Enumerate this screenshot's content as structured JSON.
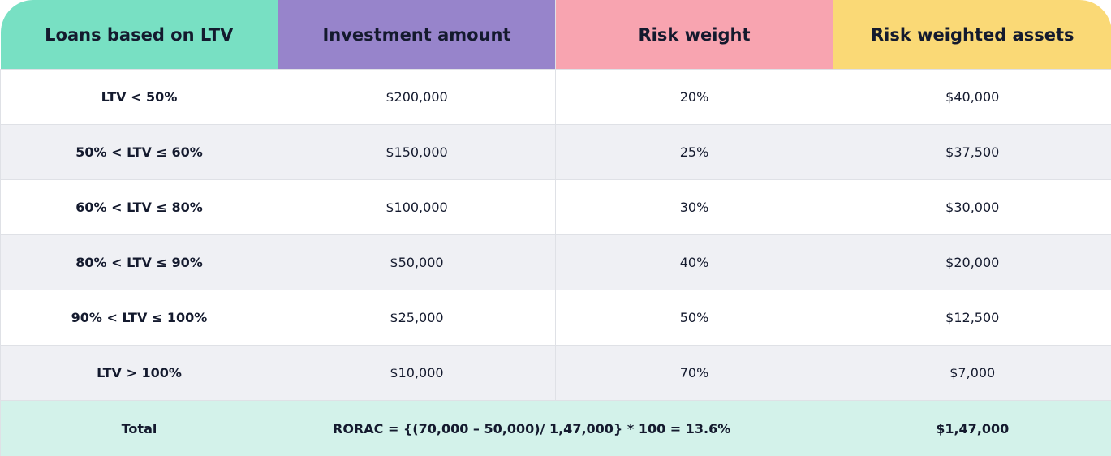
{
  "colors": {
    "header_1": "#78e0c3",
    "header_2": "#9784cb",
    "header_3": "#f8a4b0",
    "header_4": "#fad976",
    "row_alt": "#eff0f4",
    "total_row": "#d3f2ea",
    "text": "#141a2e"
  },
  "table": {
    "headers": [
      "Loans based on LTV",
      "Investment amount",
      "Risk weight",
      "Risk weighted assets"
    ],
    "rows": [
      {
        "ltv": "LTV < 50%",
        "investment": "$200,000",
        "risk_weight": "20%",
        "rwa": "$40,000"
      },
      {
        "ltv": "50% < LTV ≤ 60%",
        "investment": "$150,000",
        "risk_weight": "25%",
        "rwa": "$37,500"
      },
      {
        "ltv": "60% < LTV ≤ 80%",
        "investment": "$100,000",
        "risk_weight": "30%",
        "rwa": "$30,000"
      },
      {
        "ltv": "80% < LTV ≤ 90%",
        "investment": "$50,000",
        "risk_weight": "40%",
        "rwa": "$20,000"
      },
      {
        "ltv": "90% < LTV ≤ 100%",
        "investment": "$25,000",
        "risk_weight": "50%",
        "rwa": "$12,500"
      },
      {
        "ltv": "LTV > 100%",
        "investment": "$10,000",
        "risk_weight": "70%",
        "rwa": "$7,000"
      }
    ],
    "total": {
      "label": "Total",
      "formula": "RORAC = {(70,000 – 50,000)/ 1,47,000} * 100 = 13.6%",
      "rwa_total": "$1,47,000"
    }
  }
}
